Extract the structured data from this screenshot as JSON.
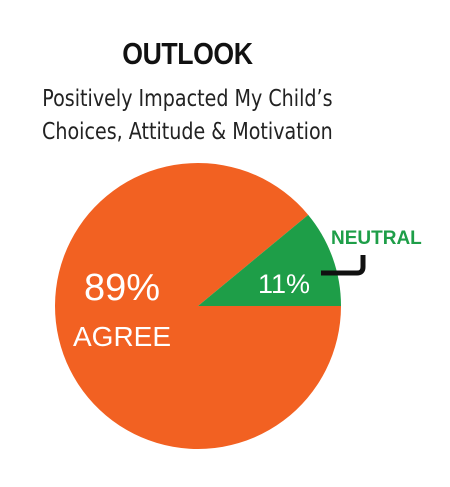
{
  "colors": {
    "agree": "#f26122",
    "neutral": "#1e9e48",
    "neutral_text": "#1e9e48",
    "leader_line": "#111111"
  },
  "chart_data": {
    "type": "pie",
    "title": "OUTLOOK",
    "subtitle_lines": [
      "Positively Impacted My Child’s",
      "Choices, Attitude & Motivation"
    ],
    "slices": [
      {
        "label": "AGREE",
        "value": 89,
        "value_label": "89%",
        "color": "#f26122"
      },
      {
        "label": "NEUTRAL",
        "value": 11,
        "value_label": "11%",
        "color": "#1e9e48"
      }
    ]
  }
}
